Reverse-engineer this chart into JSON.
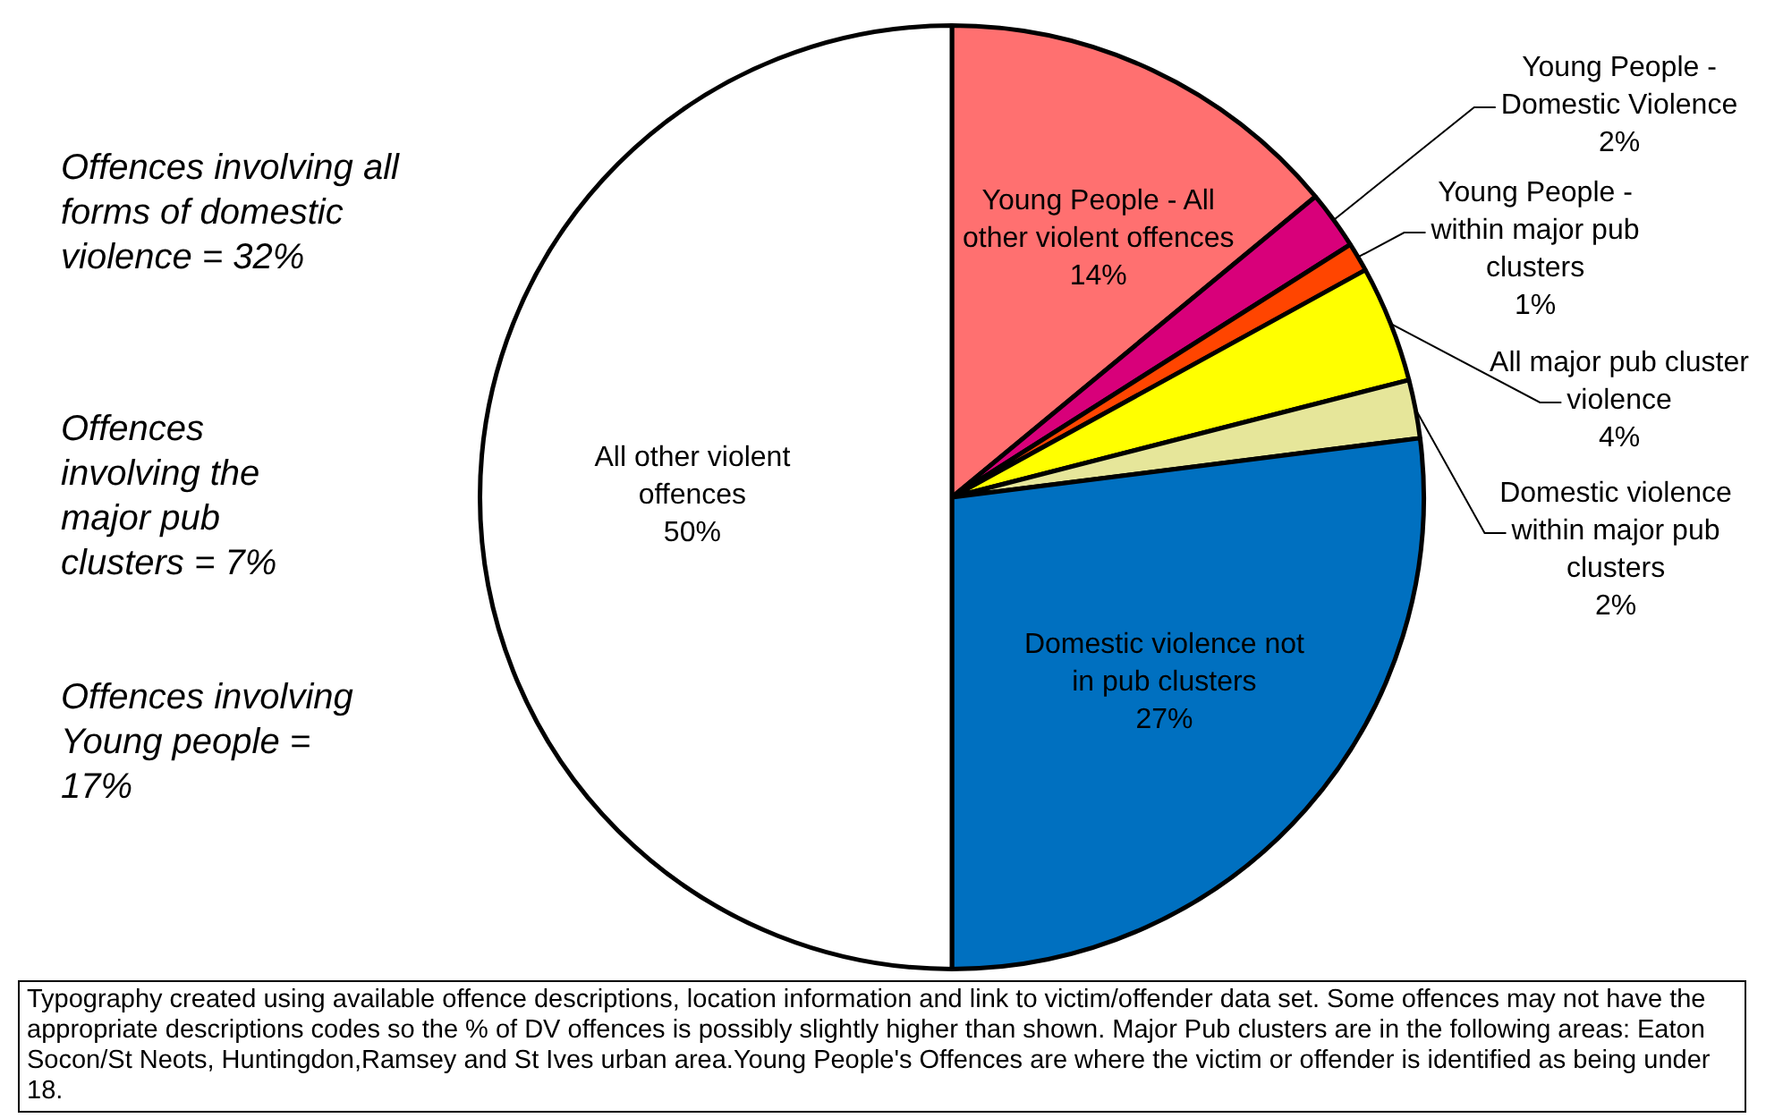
{
  "chart_data": {
    "type": "pie",
    "categories": [
      "Young People - All other violent offences",
      "Young People - Domestic Violence",
      "Young People - within major pub clusters",
      "All major pub cluster violence",
      "Domestic violence within major pub clusters",
      "Domestic violence not in pub clusters",
      "All other violent offences"
    ],
    "values": [
      14,
      2,
      1,
      4,
      2,
      27,
      50
    ],
    "value_labels": [
      "14%",
      "2%",
      "1%",
      "4%",
      "2%",
      "27%",
      "50%"
    ],
    "colors": [
      "#ff7070",
      "#d8007a",
      "#ff4500",
      "#ffff00",
      "#e6e69a",
      "#0070c0",
      "#ffffff"
    ],
    "legend": false,
    "annotations": [
      "Offences involving all forms of domestic violence = 32%",
      "Offences involving the major pub clusters = 7%",
      "Offences involving Young people = 17%",
      "Typography created using available  offence descriptions, location information and link to victim/offender data set.  Some offences may not have the appropriate descriptions codes so the % of DV offences is possibly slightly higher than shown. Major Pub clusters are in the following areas: Eaton Socon/St Neots, Huntingdon,Ramsey  and St Ives urban area.Young People's Offences are where the victim or offender is identified as being under 18."
    ]
  }
}
